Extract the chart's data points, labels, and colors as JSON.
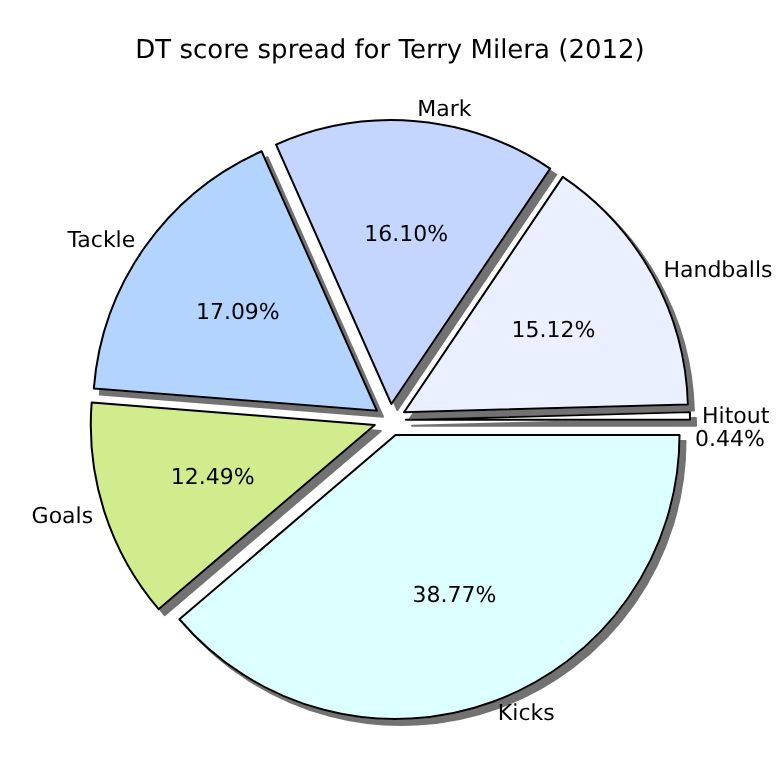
{
  "chart_data": {
    "type": "pie",
    "title": "DT score spread for Terry Milera (2012)",
    "categories": [
      "Hitout",
      "Handballs",
      "Mark",
      "Tackle",
      "Goals",
      "Kicks"
    ],
    "values": [
      0.44,
      15.12,
      16.1,
      17.09,
      12.49,
      38.77
    ],
    "colors": [
      "#ffffff",
      "#eaf0ff",
      "#c4d6ff",
      "#b3d4ff",
      "#d0ec8c",
      "#dcffff"
    ],
    "value_labels": [
      "0.44%",
      "15.12%",
      "16.10%",
      "17.09%",
      "12.49%",
      "38.77%"
    ]
  }
}
